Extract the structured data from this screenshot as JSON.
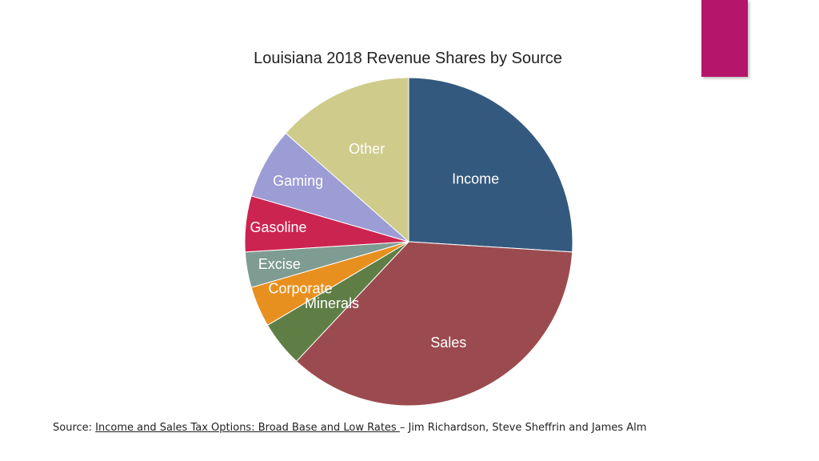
{
  "colors": {
    "accent": "#B5166B"
  },
  "chart_data": {
    "type": "pie",
    "title": "Louisiana 2018 Revenue Shares by Source",
    "start_angle_deg": 0,
    "direction": "clockwise",
    "slices": [
      {
        "label": "Income",
        "value": 26.0,
        "color": "#34597E"
      },
      {
        "label": "Sales",
        "value": 36.0,
        "color": "#9B4B4F"
      },
      {
        "label": "Minerals",
        "value": 4.5,
        "color": "#5F7E45"
      },
      {
        "label": "Corporate",
        "value": 4.0,
        "color": "#E8901F"
      },
      {
        "label": "Excise",
        "value": 3.5,
        "color": "#7E9C91"
      },
      {
        "label": "Gasoline",
        "value": 5.5,
        "color": "#CC2450"
      },
      {
        "label": "Gaming",
        "value": 7.0,
        "color": "#9C9DD4"
      },
      {
        "label": "Other",
        "value": 13.5,
        "color": "#CFCB8B"
      }
    ]
  },
  "source": {
    "prefix": "Source: ",
    "link_text": "Income and Sales Tax Options: Broad Base and Low Rates ",
    "suffix": "– Jim Richardson, Steve Sheffrin and James Alm"
  }
}
